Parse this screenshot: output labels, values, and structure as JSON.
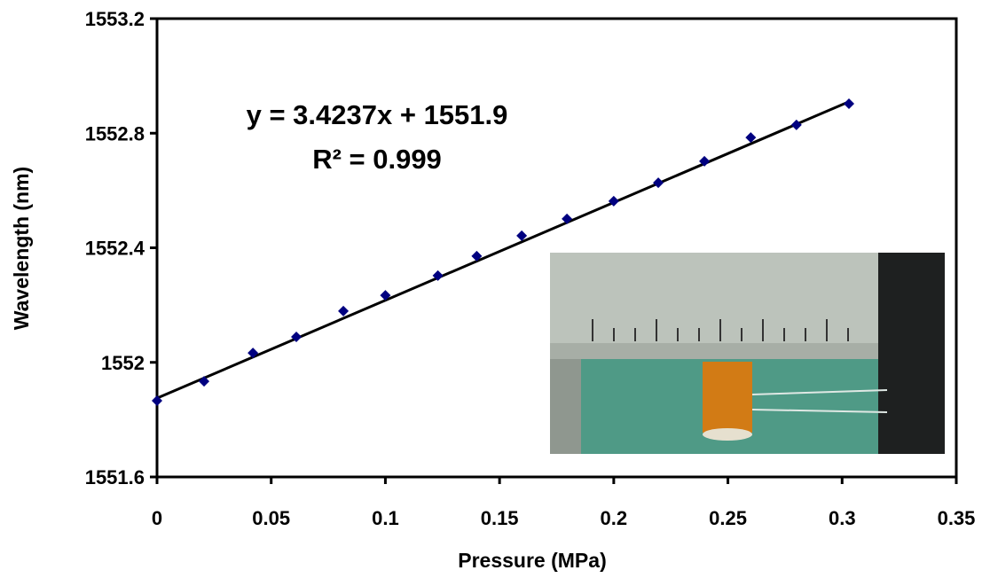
{
  "chart_data": {
    "type": "scatter",
    "xlabel": "Pressure (MPa)",
    "ylabel": "Wavelength (nm)",
    "annotations": [
      "y = 3.4237x + 1551.9",
      "R² = 0.999"
    ],
    "xlim": [
      0,
      0.35
    ],
    "ylim": [
      1551.6,
      1553.2
    ],
    "xticks": [
      0,
      0.05,
      0.1,
      0.15,
      0.2,
      0.25,
      0.3,
      0.35
    ],
    "yticks": [
      1551.6,
      1552,
      1552.4,
      1552.8,
      1553.2
    ],
    "series": [
      {
        "type": "scatter",
        "color": "#000080",
        "x": [
          0,
          0.0206,
          0.042,
          0.061,
          0.0816,
          0.1,
          0.123,
          0.14,
          0.1597,
          0.1795,
          0.2,
          0.2195,
          0.2397,
          0.26,
          0.28,
          0.303
        ],
        "values": [
          1551.866,
          1551.934,
          1552.033,
          1552.089,
          1552.179,
          1552.234,
          1552.303,
          1552.371,
          1552.442,
          1552.501,
          1552.563,
          1552.627,
          1552.702,
          1552.785,
          1552.829,
          1552.903
        ]
      },
      {
        "type": "line",
        "color": "#000000",
        "x": [
          0,
          0.303
        ],
        "values": [
          1551.875,
          1552.91
        ]
      }
    ]
  }
}
